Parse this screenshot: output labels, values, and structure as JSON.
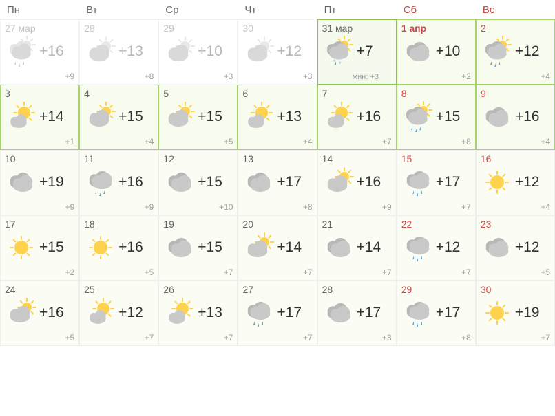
{
  "headers": [
    "Пн",
    "Вт",
    "Ср",
    "Чт",
    "Пт",
    "Сб",
    "Вс"
  ],
  "weekend_color": "#c94a4a",
  "text_color": "#666666",
  "high_color": "#333333",
  "low_color": "#a0a0a0",
  "green_border": "#8bc34a",
  "cell_bg_green": "#f7fcef",
  "days": [
    {
      "date": "27 мар",
      "high": "+16",
      "low": "+9",
      "icon": "cloud-sun-rain",
      "past": true,
      "weekend": false
    },
    {
      "date": "28",
      "high": "+13",
      "low": "+8",
      "icon": "cloud-sun",
      "past": true,
      "weekend": false
    },
    {
      "date": "29",
      "high": "+10",
      "low": "+3",
      "icon": "cloud-sun",
      "past": true,
      "weekend": false
    },
    {
      "date": "30",
      "high": "+12",
      "low": "+3",
      "icon": "cloud-sun",
      "past": true,
      "weekend": false
    },
    {
      "date": "31 мар",
      "high": "+7",
      "low": "+3",
      "lowprefix": "мин: ",
      "icon": "cloud-sun-sleet",
      "today": true,
      "weekend": false
    },
    {
      "date": "1 апр",
      "high": "+10",
      "low": "+2",
      "icon": "cloud",
      "weekend": true,
      "greenweek": true,
      "bold": true
    },
    {
      "date": "2",
      "high": "+12",
      "low": "+4",
      "icon": "cloud-sun-rain-c",
      "weekend": true,
      "greenweek": true
    },
    {
      "date": "3",
      "high": "+14",
      "low": "+1",
      "icon": "sun-cloud",
      "greenweek": true,
      "weekend": false
    },
    {
      "date": "4",
      "high": "+15",
      "low": "+4",
      "icon": "cloud-sun",
      "greenweek": true,
      "weekend": false
    },
    {
      "date": "5",
      "high": "+15",
      "low": "+5",
      "icon": "cloud-sun",
      "greenweek": true,
      "weekend": false
    },
    {
      "date": "6",
      "high": "+13",
      "low": "+4",
      "icon": "sun-cloud",
      "greenweek": true,
      "weekend": false
    },
    {
      "date": "7",
      "high": "+16",
      "low": "+7",
      "icon": "sun-cloud",
      "greenweek": true,
      "weekend": false
    },
    {
      "date": "8",
      "high": "+15",
      "low": "+8",
      "icon": "cloud-sun-rain-c",
      "weekend": true,
      "greenweek": true
    },
    {
      "date": "9",
      "high": "+16",
      "low": "+4",
      "icon": "cloud",
      "weekend": true,
      "greenweek": true
    },
    {
      "date": "10",
      "high": "+19",
      "low": "+9",
      "icon": "cloud",
      "tint": true,
      "weekend": false
    },
    {
      "date": "11",
      "high": "+16",
      "low": "+9",
      "icon": "cloud-rain",
      "tint": true,
      "weekend": false
    },
    {
      "date": "12",
      "high": "+15",
      "low": "+10",
      "icon": "cloud",
      "tint": true,
      "weekend": false
    },
    {
      "date": "13",
      "high": "+17",
      "low": "+8",
      "icon": "cloud",
      "tint": true,
      "weekend": false
    },
    {
      "date": "14",
      "high": "+16",
      "low": "+9",
      "icon": "cloud-sun",
      "tint": true,
      "weekend": false
    },
    {
      "date": "15",
      "high": "+17",
      "low": "+7",
      "icon": "cloud-rain",
      "weekend": true,
      "tint": true
    },
    {
      "date": "16",
      "high": "+12",
      "low": "+4",
      "icon": "sun",
      "weekend": true,
      "tint": true
    },
    {
      "date": "17",
      "high": "+15",
      "low": "+2",
      "icon": "sun",
      "tint": true,
      "weekend": false
    },
    {
      "date": "18",
      "high": "+16",
      "low": "+5",
      "icon": "sun",
      "tint": true,
      "weekend": false
    },
    {
      "date": "19",
      "high": "+15",
      "low": "+7",
      "icon": "cloud",
      "tint": true,
      "weekend": false
    },
    {
      "date": "20",
      "high": "+14",
      "low": "+7",
      "icon": "cloud-sun",
      "tint": true,
      "weekend": false
    },
    {
      "date": "21",
      "high": "+14",
      "low": "+7",
      "icon": "cloud",
      "tint": true,
      "weekend": false
    },
    {
      "date": "22",
      "high": "+12",
      "low": "+7",
      "icon": "cloud-rain",
      "weekend": true,
      "tint": true
    },
    {
      "date": "23",
      "high": "+12",
      "low": "+5",
      "icon": "cloud",
      "weekend": true,
      "tint": true
    },
    {
      "date": "24",
      "high": "+16",
      "low": "+5",
      "icon": "cloud-sun",
      "tint": true,
      "weekend": false
    },
    {
      "date": "25",
      "high": "+12",
      "low": "+7",
      "icon": "sun-cloud",
      "tint": true,
      "weekend": false
    },
    {
      "date": "26",
      "high": "+13",
      "low": "+7",
      "icon": "sun-cloud",
      "tint": true,
      "weekend": false
    },
    {
      "date": "27",
      "high": "+17",
      "low": "+7",
      "icon": "cloud-rain",
      "tint": true,
      "weekend": false
    },
    {
      "date": "28",
      "high": "+17",
      "low": "+8",
      "icon": "cloud",
      "tint": true,
      "weekend": false
    },
    {
      "date": "29",
      "high": "+17",
      "low": "+8",
      "icon": "cloud-rain",
      "weekend": true,
      "tint": true
    },
    {
      "date": "30",
      "high": "+19",
      "low": "+7",
      "icon": "sun",
      "weekend": true,
      "tint": true
    }
  ]
}
